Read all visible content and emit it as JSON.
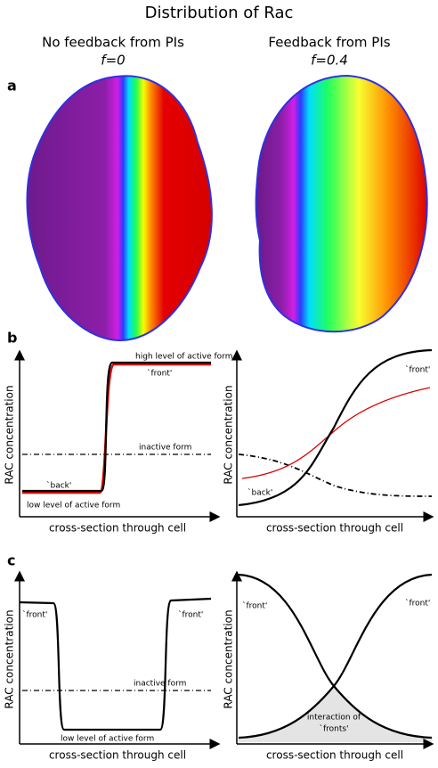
{
  "title": "Distribution of Rac",
  "columns": [
    {
      "heading": "No feedback from PIs",
      "parameter": "f=0"
    },
    {
      "heading": "Feedback from PIs",
      "parameter": "f=0.4"
    }
  ],
  "panels": [
    {
      "label": "a"
    },
    {
      "label": "b",
      "plots": [
        {
          "y_label": "RAC concentration",
          "x_label": "cross-section through cell",
          "annotations": [
            "high level of active form",
            "`front'",
            "inactive form",
            "`back'",
            "low level of active form"
          ]
        },
        {
          "y_label": "RAC concentration",
          "x_label": "cross-section through cell",
          "annotations": [
            "`front'",
            "`back'"
          ]
        }
      ]
    },
    {
      "label": "c",
      "plots": [
        {
          "y_label": "RAC concentration",
          "x_label": "cross-section through cell",
          "annotations": [
            "`front'",
            "`front'",
            "inactive form",
            "low level of active form"
          ]
        },
        {
          "y_label": "RAC concentration",
          "x_label": "cross-section through cell",
          "annotations": [
            "`front'",
            "`front'",
            "interaction of",
            "`fronts'"
          ]
        }
      ]
    }
  ]
}
